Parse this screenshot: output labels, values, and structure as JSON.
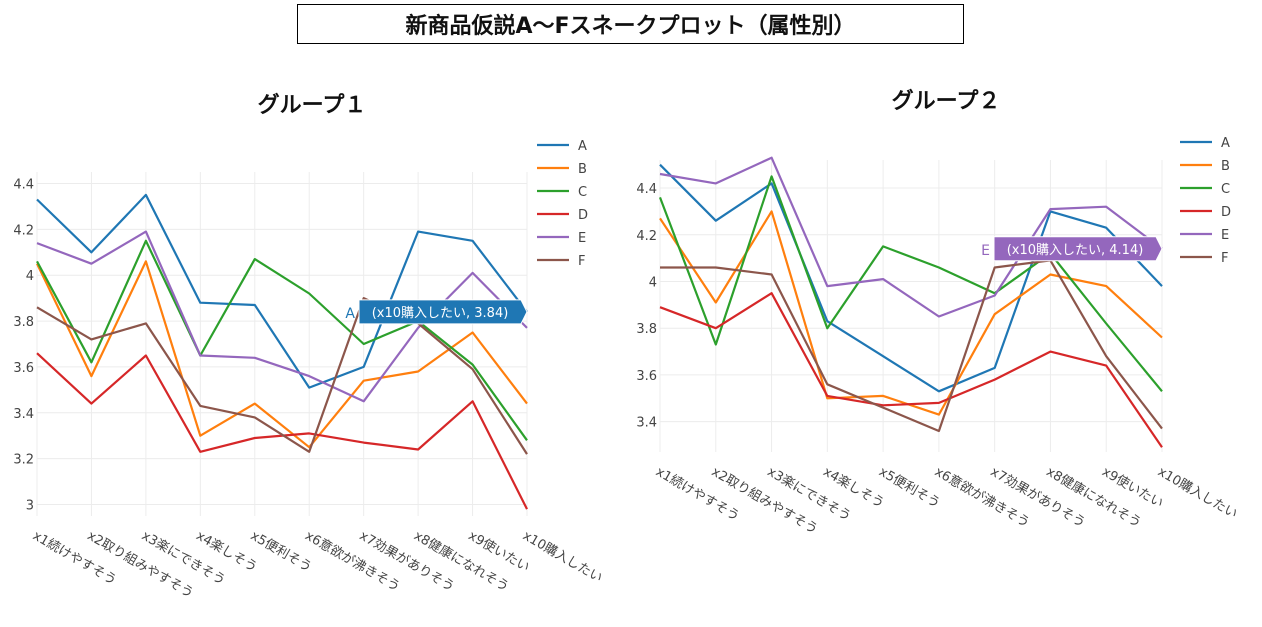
{
  "title": "新商品仮説A〜Fスネークプロット（属性別）",
  "chart_data": [
    {
      "type": "line",
      "title": "グループ１",
      "categories": [
        "x1続けやすそう",
        "x2取り組みやすそう",
        "x3楽にできそう",
        "x4楽しそう",
        "x5便利そう",
        "x6意欲が沸きそう",
        "x7効果がありそう",
        "x8健康になれそう",
        "x9使いたい",
        "x10購入したい"
      ],
      "ylim": [
        2.95,
        4.45
      ],
      "yticks": [
        3,
        3.2,
        3.4,
        3.6,
        3.8,
        4,
        4.2,
        4.4
      ],
      "ytick_labels": [
        "3",
        "3.2",
        "3.4",
        "3.6",
        "3.8",
        "4",
        "4.2",
        "4.4"
      ],
      "grid": true,
      "legend_position": "top-right",
      "series": [
        {
          "name": "A",
          "color": "#1f77b4",
          "values": [
            4.33,
            4.1,
            4.35,
            3.88,
            3.87,
            3.51,
            3.6,
            4.19,
            4.15,
            3.84
          ]
        },
        {
          "name": "B",
          "color": "#ff7f0e",
          "values": [
            4.05,
            3.56,
            4.06,
            3.3,
            3.44,
            3.25,
            3.54,
            3.58,
            3.75,
            3.44
          ]
        },
        {
          "name": "C",
          "color": "#2ca02c",
          "values": [
            4.06,
            3.62,
            4.15,
            3.65,
            4.07,
            3.92,
            3.7,
            3.8,
            3.61,
            3.28
          ]
        },
        {
          "name": "D",
          "color": "#d62728",
          "values": [
            3.66,
            3.44,
            3.65,
            3.23,
            3.29,
            3.31,
            3.27,
            3.24,
            3.45,
            2.98
          ]
        },
        {
          "name": "E",
          "color": "#9467bd",
          "values": [
            4.14,
            4.05,
            4.19,
            3.65,
            3.64,
            3.56,
            3.45,
            3.77,
            4.01,
            3.77
          ]
        },
        {
          "name": "F",
          "color": "#8c564b",
          "values": [
            3.86,
            3.72,
            3.79,
            3.43,
            3.38,
            3.23,
            3.9,
            3.79,
            3.59,
            3.22
          ]
        }
      ],
      "hover": {
        "series": "A",
        "label": "(x10購入したい, 3.84)",
        "color": "#1f77b4"
      }
    },
    {
      "type": "line",
      "title": "グループ２",
      "categories": [
        "x1続けやすそう",
        "x2取り組みやすそう",
        "x3楽にできそう",
        "x4楽しそう",
        "x5便利そう",
        "x6意欲が沸きそう",
        "x7効果がありそう",
        "x8健康になれそう",
        "x9使いたい",
        "x10購入したい"
      ],
      "ylim": [
        3.27,
        4.52
      ],
      "yticks": [
        3.4,
        3.6,
        3.8,
        4,
        4.2,
        4.4
      ],
      "ytick_labels": [
        "3.4",
        "3.6",
        "3.8",
        "4",
        "4.2",
        "4.4"
      ],
      "grid": true,
      "legend_position": "top-right",
      "series": [
        {
          "name": "A",
          "color": "#1f77b4",
          "values": [
            4.5,
            4.26,
            4.42,
            3.83,
            3.68,
            3.53,
            3.63,
            4.3,
            4.23,
            3.98
          ]
        },
        {
          "name": "B",
          "color": "#ff7f0e",
          "values": [
            4.27,
            3.91,
            4.3,
            3.5,
            3.51,
            3.43,
            3.86,
            4.03,
            3.98,
            3.76
          ]
        },
        {
          "name": "C",
          "color": "#2ca02c",
          "values": [
            4.36,
            3.73,
            4.45,
            3.8,
            4.15,
            4.06,
            3.95,
            4.12,
            3.82,
            3.53
          ]
        },
        {
          "name": "D",
          "color": "#d62728",
          "values": [
            3.89,
            3.8,
            3.95,
            3.51,
            3.47,
            3.48,
            3.58,
            3.7,
            3.64,
            3.29
          ]
        },
        {
          "name": "E",
          "color": "#9467bd",
          "values": [
            4.46,
            4.42,
            4.53,
            3.98,
            4.01,
            3.85,
            3.94,
            4.31,
            4.32,
            4.14
          ]
        },
        {
          "name": "F",
          "color": "#8c564b",
          "values": [
            4.06,
            4.06,
            4.03,
            3.56,
            3.46,
            3.36,
            4.06,
            4.09,
            3.68,
            3.37
          ]
        }
      ],
      "hover": {
        "series": "E",
        "label": "(x10購入したい, 4.14)",
        "color": "#9467bd"
      }
    }
  ]
}
